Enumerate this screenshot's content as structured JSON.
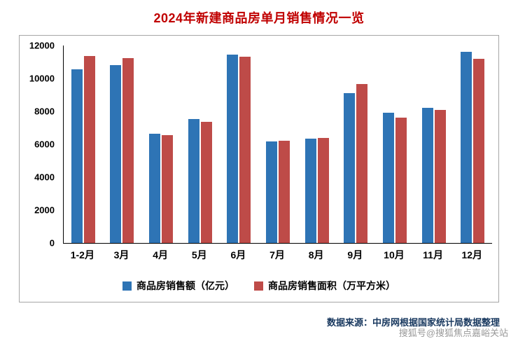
{
  "page": {
    "title": "2024年新建商品房单月销售情况一览"
  },
  "chart_data": {
    "type": "bar",
    "title": "2024年新建商品房单月销售情况一览",
    "categories": [
      "1-2月",
      "3月",
      "4月",
      "5月",
      "6月",
      "7月",
      "8月",
      "9月",
      "10月",
      "11月",
      "12月"
    ],
    "series": [
      {
        "name": "商品房销售额（亿元）",
        "color": "#2E74B5",
        "values": [
          10550,
          10800,
          6650,
          7550,
          11450,
          6150,
          6350,
          9100,
          7900,
          8200,
          11600
        ]
      },
      {
        "name": "商品房销售面积（万平方米）",
        "color": "#BE4B48",
        "values": [
          11350,
          11250,
          6550,
          7350,
          11300,
          6200,
          6400,
          9650,
          7600,
          8100,
          11200
        ]
      }
    ],
    "xlabel": "",
    "ylabel": "",
    "ylim": [
      0,
      12000
    ],
    "yticks": [
      0,
      2000,
      4000,
      6000,
      8000,
      10000,
      12000
    ],
    "grid": false,
    "legend_position": "bottom"
  },
  "footer": {
    "source_text": "数据来源：中房网根据国家统计局数据整理",
    "watermark": "搜狐号@搜狐焦点嘉峪关站"
  },
  "colors": {
    "title": "#C00000",
    "series_blue": "#2E74B5",
    "series_red": "#BE4B48",
    "axis": "#000000",
    "source_text": "#17375E",
    "watermark": "#808080",
    "chart_border": "#A6A6A6"
  }
}
